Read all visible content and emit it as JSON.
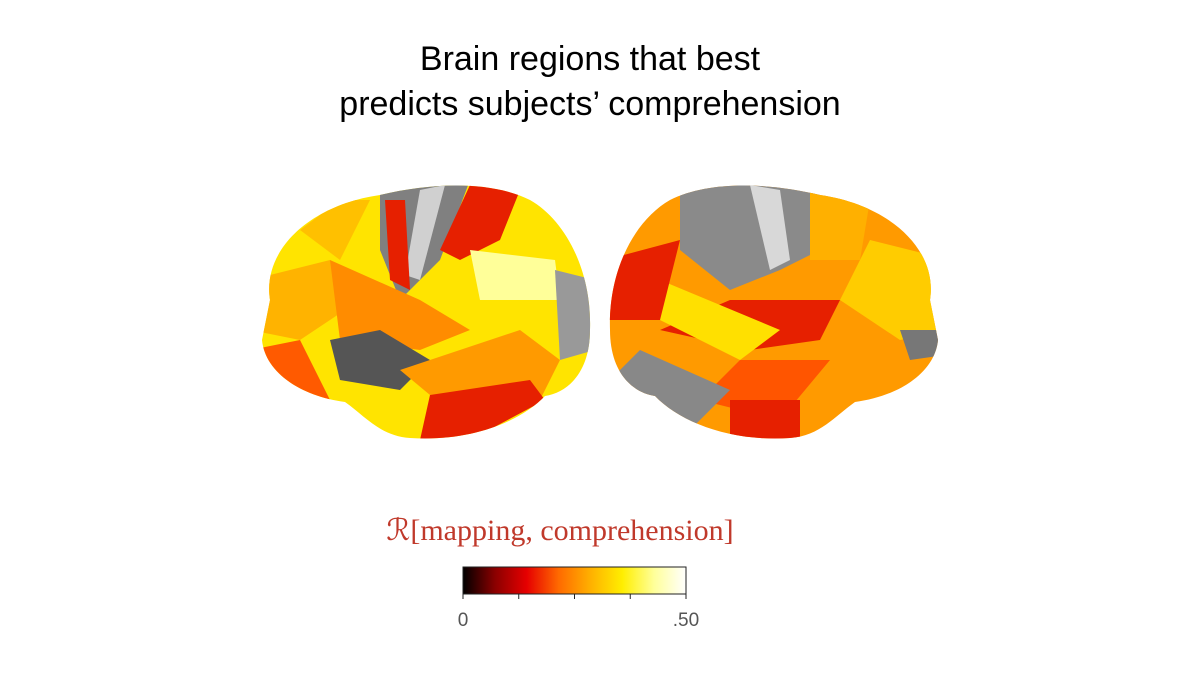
{
  "title": {
    "lines": [
      "Brain regions that best",
      "predicts subjects’ comprehension"
    ]
  },
  "colorbar": {
    "label": "ℛ[mapping, comprehension]",
    "lim": [
      0,
      0.5
    ],
    "ticks": [
      0,
      {
        "value": 0.5,
        "label": ".50"
      }
    ],
    "minor_ticks": [
      0.125,
      0.25,
      0.375
    ],
    "colormap": [
      "#000000",
      "#8a0000",
      "#e60000",
      "#ff6a00",
      "#ffb000",
      "#ffee00",
      "#ffff9a",
      "#ffffff"
    ]
  }
}
